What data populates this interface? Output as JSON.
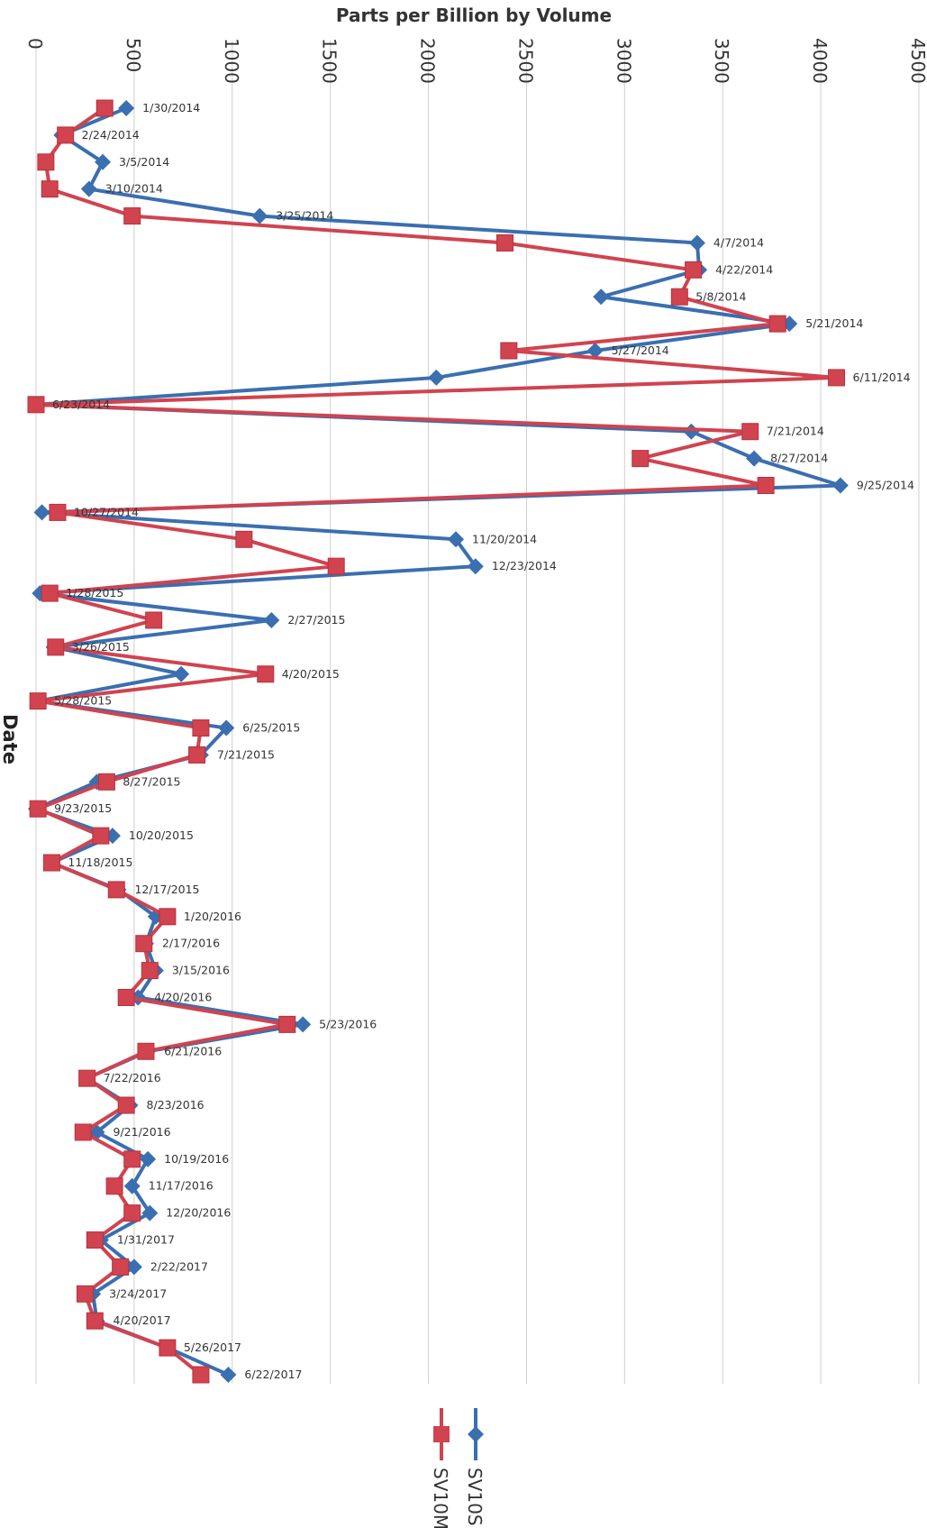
{
  "chart_data": {
    "type": "line",
    "title": "Parts per Billion by Volume",
    "xlabel": "Parts per Billion by Volume",
    "ylabel": "Date",
    "xlim": [
      0,
      4500
    ],
    "x_ticks": [
      "0",
      "500",
      "1000",
      "1500",
      "2000",
      "2500",
      "3000",
      "3500",
      "4000",
      "4500"
    ],
    "grid": true,
    "orientation": "rotated 90 degrees clockwise",
    "legend_position": "bottom",
    "dates": [
      "1/30/2014",
      "2/24/2014",
      "3/5/2014",
      "3/10/2014",
      "3/25/2014",
      "4/7/2014",
      "4/22/2014",
      "5/8/2014",
      "5/21/2014",
      "5/27/2014",
      "6/11/2014",
      "6/23/2014",
      "7/21/2014",
      "8/27/2014",
      "9/25/2014",
      "10/27/2014",
      "11/20/2014",
      "12/23/2014",
      "1/28/2015",
      "2/27/2015",
      "3/26/2015",
      "4/20/2015",
      "5/28/2015",
      "6/25/2015",
      "7/21/2015",
      "8/27/2015",
      "9/23/2015",
      "10/20/2015",
      "11/18/2015",
      "12/17/2015",
      "1/20/2016",
      "2/17/2016",
      "3/15/2016",
      "4/20/2016",
      "5/23/2016",
      "6/21/2016",
      "7/22/2016",
      "8/23/2016",
      "9/21/2016",
      "10/19/2016",
      "11/17/2016",
      "12/20/2016",
      "1/31/2017",
      "2/22/2017",
      "3/24/2017",
      "4/20/2017",
      "5/26/2017",
      "6/22/2017"
    ],
    "series": [
      {
        "name": "SV10S",
        "color": "#3a6fb0",
        "marker": "diamond",
        "values": [
          460,
          130,
          340,
          270,
          1140,
          3370,
          3380,
          2880,
          3840,
          2850,
          2040,
          0,
          3340,
          3660,
          4100,
          30,
          2140,
          2240,
          20,
          1200,
          90,
          740,
          10,
          970,
          840,
          310,
          0,
          390,
          80,
          420,
          610,
          560,
          610,
          520,
          1360,
          570,
          260,
          480,
          310,
          570,
          490,
          580,
          330,
          500,
          290,
          310,
          670,
          980
        ]
      },
      {
        "name": "SV10M",
        "color": "#d0434f",
        "marker": "square",
        "values": [
          350,
          150,
          50,
          70,
          490,
          2390,
          3350,
          3280,
          3780,
          2410,
          4080,
          0,
          3640,
          3080,
          3720,
          110,
          1060,
          1530,
          70,
          600,
          100,
          1170,
          10,
          840,
          820,
          360,
          10,
          330,
          80,
          410,
          670,
          550,
          580,
          460,
          1280,
          560,
          260,
          460,
          240,
          490,
          400,
          490,
          300,
          430,
          250,
          300,
          670,
          840
        ]
      }
    ]
  }
}
